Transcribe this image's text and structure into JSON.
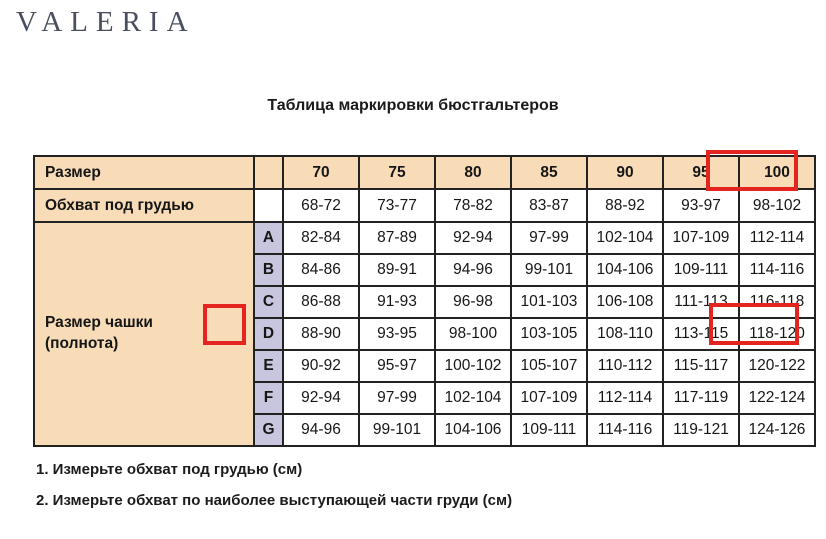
{
  "brand": {
    "logo": "VALERIA"
  },
  "title": "Таблица маркировки бюстгальтеров",
  "table": {
    "size_row_label": "Размер",
    "underbust_row_label": "Обхват под грудью",
    "cup_label": "Размер чашки (полнота)",
    "sizes": [
      "70",
      "75",
      "80",
      "85",
      "90",
      "95",
      "100"
    ],
    "underbust": [
      "68-72",
      "73-77",
      "78-82",
      "83-87",
      "88-92",
      "93-97",
      "98-102"
    ],
    "cups": [
      {
        "letter": "A",
        "values": [
          "82-84",
          "87-89",
          "92-94",
          "97-99",
          "102-104",
          "107-109",
          "112-114"
        ]
      },
      {
        "letter": "B",
        "values": [
          "84-86",
          "89-91",
          "94-96",
          "99-101",
          "104-106",
          "109-111",
          "114-116"
        ]
      },
      {
        "letter": "C",
        "values": [
          "86-88",
          "91-93",
          "96-98",
          "101-103",
          "106-108",
          "111-113",
          "116-118"
        ]
      },
      {
        "letter": "D",
        "values": [
          "88-90",
          "93-95",
          "98-100",
          "103-105",
          "108-110",
          "113-115",
          "118-120"
        ]
      },
      {
        "letter": "E",
        "values": [
          "90-92",
          "95-97",
          "100-102",
          "105-107",
          "110-112",
          "115-117",
          "120-122"
        ]
      },
      {
        "letter": "F",
        "values": [
          "92-94",
          "97-99",
          "102-104",
          "107-109",
          "112-114",
          "117-119",
          "122-124"
        ]
      },
      {
        "letter": "G",
        "values": [
          "94-96",
          "99-101",
          "104-106",
          "109-111",
          "114-116",
          "119-121",
          "124-126"
        ]
      }
    ],
    "highlights": {
      "highlighted_size": "100",
      "highlighted_cup": "D",
      "highlighted_value": "118-120"
    }
  },
  "notes": [
    "1. Измерьте обхват под грудью (см)",
    "2. Измерьте обхват по наиболее выступающей части груди (см)"
  ],
  "colors": {
    "header_bg": "#f8dcb8",
    "cup_letter_bg": "#c8c5de",
    "highlight_red": "#e4251f",
    "border": "#222222"
  }
}
